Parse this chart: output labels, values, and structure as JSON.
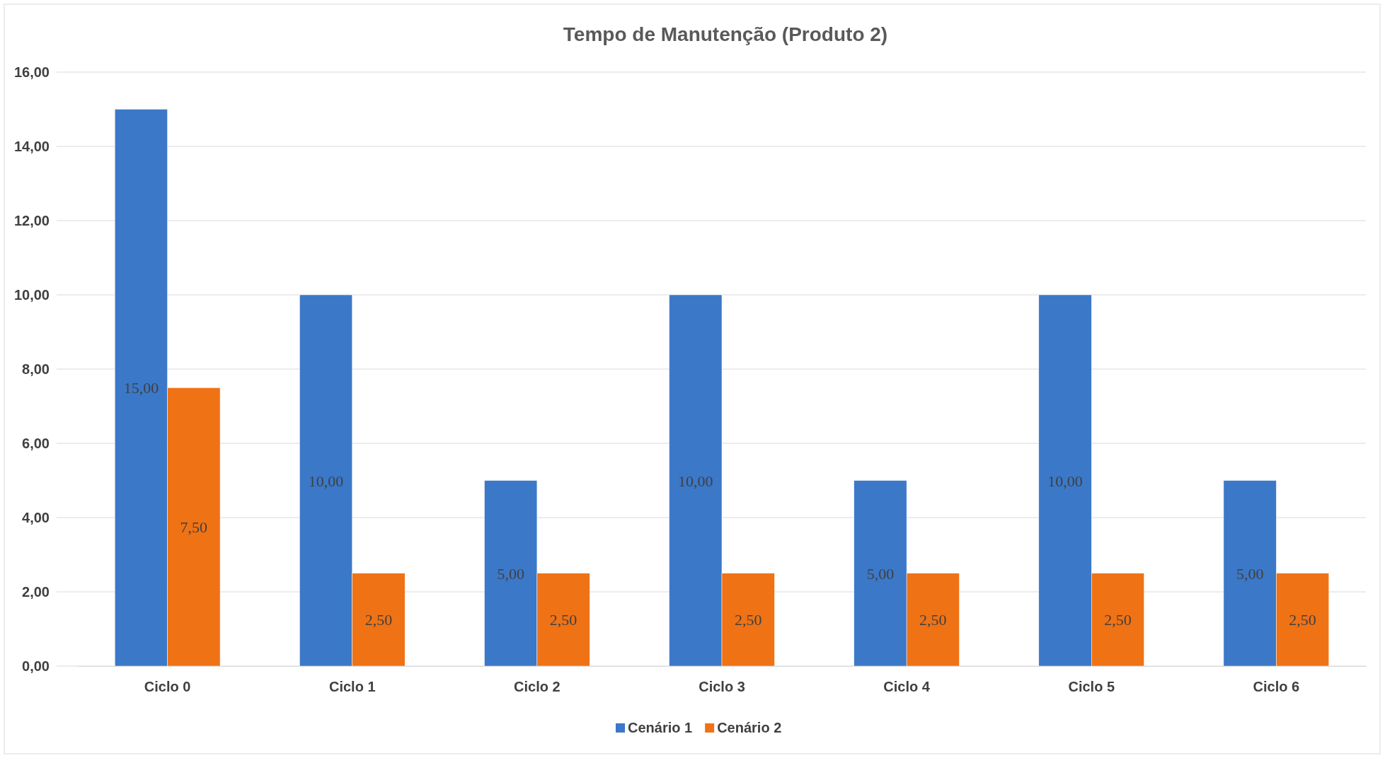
{
  "chart_data": {
    "type": "bar",
    "title": "Tempo de Manutenção (Produto 2)",
    "categories": [
      "Ciclo 0",
      "Ciclo 1",
      "Ciclo 2",
      "Ciclo 3",
      "Ciclo 4",
      "Ciclo 5",
      "Ciclo 6"
    ],
    "series": [
      {
        "name": "Cenário 1",
        "color": "#3b78c8",
        "values": [
          15,
          10,
          5,
          10,
          5,
          10,
          5
        ],
        "value_labels": [
          "15,00",
          "10,00",
          "5,00",
          "10,00",
          "5,00",
          "10,00",
          "5,00"
        ]
      },
      {
        "name": "Cenário 2",
        "color": "#ef7215",
        "values": [
          7.5,
          2.5,
          2.5,
          2.5,
          2.5,
          2.5,
          2.5
        ],
        "value_labels": [
          "7,50",
          "2,50",
          "2,50",
          "2,50",
          "2,50",
          "2,50",
          "2,50"
        ]
      }
    ],
    "ylim": [
      0,
      16
    ],
    "yticks": [
      {
        "value": 0,
        "label": "0,00"
      },
      {
        "value": 2,
        "label": "2,00"
      },
      {
        "value": 4,
        "label": "4,00"
      },
      {
        "value": 6,
        "label": "6,00"
      },
      {
        "value": 8,
        "label": "8,00"
      },
      {
        "value": 10,
        "label": "10,00"
      },
      {
        "value": 12,
        "label": "12,00"
      },
      {
        "value": 14,
        "label": "14,00"
      },
      {
        "value": 16,
        "label": "16,00"
      }
    ],
    "grid": "y",
    "legend": "bottom"
  }
}
